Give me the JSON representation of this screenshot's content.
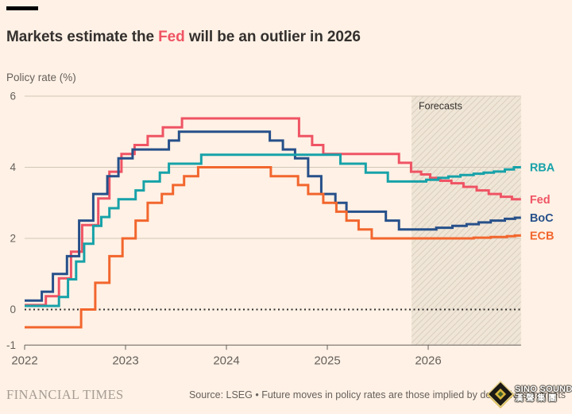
{
  "header": {
    "title_prefix": "Markets estimate the ",
    "title_highlight": "Fed",
    "title_suffix": " will be an outlier in 2026",
    "highlight_color": "#ef5464",
    "subtitle": "Policy rate (%)"
  },
  "chart_data": {
    "type": "line",
    "subtype": "step-after",
    "title": "Markets estimate the Fed will be an outlier in 2026",
    "ylabel": "Policy rate (%)",
    "xlabel": "",
    "x_range": [
      2022,
      2026.92
    ],
    "ylim": [
      -1,
      6
    ],
    "y_ticks": [
      6,
      4,
      2,
      0,
      -1
    ],
    "x_ticks": [
      2022,
      2023,
      2024,
      2025,
      2026
    ],
    "grid_values": [
      6,
      4,
      2
    ],
    "zero_line": true,
    "legend_position": "right-of-line-end",
    "colors": {
      "grid": "#D2C6B8",
      "axis": "#66605C",
      "zero_line": "#33302E",
      "tick_label": "#66605C",
      "forecast_label": "#33302E",
      "band_fill": "#F0E6D7",
      "band_hatch": "#DBCEBD"
    },
    "forecast_band": {
      "label": "Forecasts",
      "start": 2025.835,
      "end": 2026.92
    },
    "series": [
      {
        "name": "Fed",
        "color": "#EF5464",
        "points": [
          [
            2022.0,
            0.125
          ],
          [
            2022.21,
            0.375
          ],
          [
            2022.34,
            0.875
          ],
          [
            2022.46,
            1.625
          ],
          [
            2022.57,
            2.375
          ],
          [
            2022.73,
            3.125
          ],
          [
            2022.84,
            3.875
          ],
          [
            2022.96,
            4.375
          ],
          [
            2023.09,
            4.625
          ],
          [
            2023.22,
            4.875
          ],
          [
            2023.37,
            5.125
          ],
          [
            2023.56,
            5.375
          ],
          [
            2024.72,
            4.875
          ],
          [
            2024.85,
            4.625
          ],
          [
            2024.96,
            4.375
          ],
          [
            2025.71,
            4.125
          ],
          [
            2025.83,
            3.875
          ],
          [
            2025.93,
            3.8
          ],
          [
            2026.02,
            3.7
          ],
          [
            2026.12,
            3.62
          ],
          [
            2026.23,
            3.55
          ],
          [
            2026.35,
            3.45
          ],
          [
            2026.48,
            3.35
          ],
          [
            2026.6,
            3.25
          ],
          [
            2026.72,
            3.17
          ],
          [
            2026.83,
            3.1
          ]
        ]
      },
      {
        "name": "BoC",
        "color": "#26508A",
        "points": [
          [
            2022.0,
            0.25
          ],
          [
            2022.17,
            0.5
          ],
          [
            2022.28,
            1.0
          ],
          [
            2022.42,
            1.5
          ],
          [
            2022.54,
            2.5
          ],
          [
            2022.68,
            3.25
          ],
          [
            2022.82,
            3.75
          ],
          [
            2022.93,
            4.25
          ],
          [
            2023.07,
            4.5
          ],
          [
            2023.43,
            4.75
          ],
          [
            2023.53,
            5.0
          ],
          [
            2024.43,
            4.75
          ],
          [
            2024.56,
            4.5
          ],
          [
            2024.68,
            4.25
          ],
          [
            2024.81,
            3.75
          ],
          [
            2024.94,
            3.25
          ],
          [
            2025.08,
            3.0
          ],
          [
            2025.19,
            2.75
          ],
          [
            2025.58,
            2.5
          ],
          [
            2025.71,
            2.25
          ],
          [
            2026.08,
            2.3
          ],
          [
            2026.24,
            2.35
          ],
          [
            2026.38,
            2.4
          ],
          [
            2026.5,
            2.45
          ],
          [
            2026.62,
            2.5
          ],
          [
            2026.76,
            2.55
          ],
          [
            2026.86,
            2.58
          ]
        ]
      },
      {
        "name": "ECB",
        "color": "#F2662D",
        "points": [
          [
            2022.0,
            -0.5
          ],
          [
            2022.56,
            0.0
          ],
          [
            2022.7,
            0.75
          ],
          [
            2022.84,
            1.5
          ],
          [
            2022.97,
            2.0
          ],
          [
            2023.1,
            2.5
          ],
          [
            2023.22,
            3.0
          ],
          [
            2023.36,
            3.25
          ],
          [
            2023.47,
            3.5
          ],
          [
            2023.58,
            3.75
          ],
          [
            2023.72,
            4.0
          ],
          [
            2024.44,
            3.75
          ],
          [
            2024.71,
            3.5
          ],
          [
            2024.81,
            3.25
          ],
          [
            2024.96,
            3.0
          ],
          [
            2025.09,
            2.75
          ],
          [
            2025.19,
            2.5
          ],
          [
            2025.31,
            2.25
          ],
          [
            2025.44,
            2.0
          ],
          [
            2026.45,
            2.02
          ],
          [
            2026.62,
            2.04
          ],
          [
            2026.78,
            2.06
          ],
          [
            2026.86,
            2.08
          ]
        ]
      },
      {
        "name": "RBA",
        "color": "#17A2A9",
        "points": [
          [
            2022.0,
            0.1
          ],
          [
            2022.34,
            0.35
          ],
          [
            2022.43,
            0.85
          ],
          [
            2022.51,
            1.35
          ],
          [
            2022.59,
            1.85
          ],
          [
            2022.68,
            2.35
          ],
          [
            2022.76,
            2.6
          ],
          [
            2022.84,
            2.85
          ],
          [
            2022.93,
            3.1
          ],
          [
            2023.1,
            3.35
          ],
          [
            2023.18,
            3.6
          ],
          [
            2023.34,
            3.85
          ],
          [
            2023.43,
            4.1
          ],
          [
            2023.75,
            4.35
          ],
          [
            2025.13,
            4.1
          ],
          [
            2025.38,
            3.85
          ],
          [
            2025.6,
            3.6
          ],
          [
            2025.98,
            3.65
          ],
          [
            2026.1,
            3.7
          ],
          [
            2026.2,
            3.74
          ],
          [
            2026.32,
            3.78
          ],
          [
            2026.45,
            3.82
          ],
          [
            2026.55,
            3.85
          ],
          [
            2026.65,
            3.88
          ],
          [
            2026.76,
            3.94
          ],
          [
            2026.85,
            4.0
          ]
        ]
      }
    ]
  },
  "footer": {
    "brand": "FINANCIAL TIMES",
    "source": "Source: LSEG • Future moves in policy rates are those implied by derivatives markets"
  },
  "watermark": {
    "line1": "SINO SOUND",
    "line2": "漢聲集團"
  }
}
